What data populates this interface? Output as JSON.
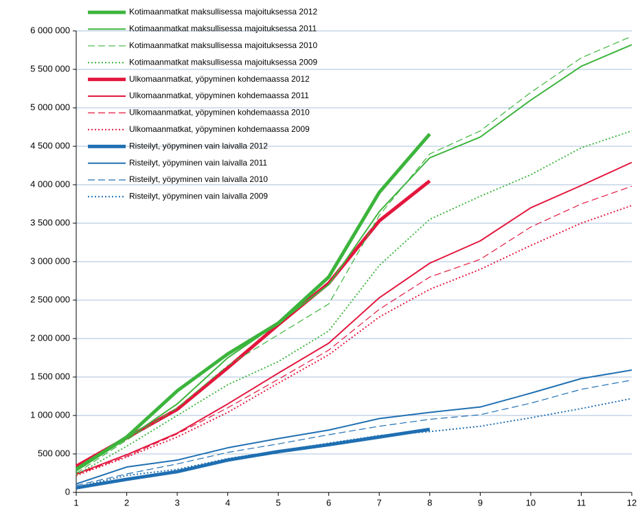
{
  "chart_data": {
    "type": "line",
    "x": [
      1,
      2,
      3,
      4,
      5,
      6,
      7,
      8,
      9,
      10,
      11,
      12
    ],
    "xlim": [
      1,
      12
    ],
    "xticks": [
      1,
      2,
      3,
      4,
      5,
      6,
      7,
      8,
      9,
      10,
      11,
      12
    ],
    "ylim": [
      0,
      6000000
    ],
    "yticks": [
      0,
      {
        "value": 500000,
        "label": "500 000"
      },
      {
        "value": 1000000,
        "label": "1 000 000"
      },
      {
        "value": 1500000,
        "label": "1 500 000"
      },
      {
        "value": 2000000,
        "label": "2 000 000"
      },
      {
        "value": 2500000,
        "label": "2 500 000"
      },
      {
        "value": 3000000,
        "label": "3 000 000"
      },
      {
        "value": 3500000,
        "label": "3 500 000"
      },
      {
        "value": 4000000,
        "label": "4 000 000"
      },
      {
        "value": 4500000,
        "label": "4 500 000"
      },
      {
        "value": 5000000,
        "label": "5 000 000"
      },
      {
        "value": 5500000,
        "label": "5 500 000"
      },
      {
        "value": 6000000,
        "label": "6 000 000"
      }
    ],
    "grid": true,
    "legend": "top-left",
    "series": [
      {
        "name": "Kotimaanmatkat maksullisessa majoituksessa 2012",
        "color": "#3cb43c",
        "style": "solid",
        "width": 5,
        "values": [
          300000,
          720000,
          1320000,
          1800000,
          2200000,
          2800000,
          3900000,
          4660000,
          null,
          null,
          null,
          null
        ]
      },
      {
        "name": "Kotimaanmatkat maksullisessa majoituksessa 2011",
        "color": "#3cb43c",
        "style": "solid",
        "width": 2,
        "values": [
          280000,
          700000,
          1150000,
          1750000,
          2200000,
          2700000,
          3650000,
          4350000,
          4620000,
          5100000,
          5540000,
          5820000
        ]
      },
      {
        "name": "Kotimaanmatkat maksullisessa majoituksessa 2010",
        "color": "#3cb43c",
        "style": "dashed",
        "width": 1.2,
        "values": [
          250000,
          680000,
          1100000,
          1650000,
          2050000,
          2450000,
          3600000,
          4400000,
          4700000,
          5200000,
          5650000,
          5930000
        ]
      },
      {
        "name": "Kotimaanmatkat maksullisessa majoituksessa 2009",
        "color": "#3cb43c",
        "style": "dotted",
        "width": 2,
        "values": [
          230000,
          600000,
          1000000,
          1400000,
          1700000,
          2100000,
          2950000,
          3550000,
          3850000,
          4130000,
          4480000,
          4700000
        ]
      },
      {
        "name": "Ulkomaanmatkat, yöpyminen kohdemaassa 2012",
        "color": "#e3173e",
        "style": "solid",
        "width": 5,
        "values": [
          340000,
          710000,
          1080000,
          1620000,
          2180000,
          2720000,
          3530000,
          4050000,
          null,
          null,
          null,
          null
        ]
      },
      {
        "name": "Ulkomaanmatkat, yöpyminen kohdemaassa 2011",
        "color": "#e3173e",
        "style": "solid",
        "width": 2,
        "values": [
          240000,
          490000,
          770000,
          1150000,
          1550000,
          1940000,
          2530000,
          2980000,
          3270000,
          3700000,
          3990000,
          4290000
        ]
      },
      {
        "name": "Ulkomaanmatkat, yöpyminen kohdemaassa 2010",
        "color": "#e3173e",
        "style": "dashed",
        "width": 1.2,
        "values": [
          230000,
          470000,
          760000,
          1100000,
          1470000,
          1850000,
          2380000,
          2800000,
          3030000,
          3450000,
          3750000,
          3980000
        ]
      },
      {
        "name": "Ulkomaanmatkat, yöpyminen kohdemaassa 2009",
        "color": "#e3173e",
        "style": "dotted",
        "width": 2,
        "values": [
          220000,
          460000,
          720000,
          1040000,
          1420000,
          1790000,
          2280000,
          2640000,
          2900000,
          3210000,
          3500000,
          3730000
        ]
      },
      {
        "name": "Risteilyt, yöpyminen vain laivalla 2012",
        "color": "#1f6fb2",
        "style": "solid",
        "width": 5,
        "values": [
          60000,
          170000,
          270000,
          420000,
          530000,
          620000,
          720000,
          820000,
          null,
          null,
          null,
          null
        ]
      },
      {
        "name": "Risteilyt, yöpyminen vain laivalla 2011",
        "color": "#1f6fb2",
        "style": "solid",
        "width": 2,
        "values": [
          110000,
          330000,
          420000,
          580000,
          700000,
          810000,
          960000,
          1040000,
          1110000,
          1290000,
          1480000,
          1590000
        ]
      },
      {
        "name": "Risteilyt, yöpyminen vain laivalla 2010",
        "color": "#1f6fb2",
        "style": "dashed",
        "width": 1.2,
        "values": [
          90000,
          240000,
          370000,
          520000,
          630000,
          750000,
          860000,
          950000,
          1010000,
          1160000,
          1340000,
          1460000
        ]
      },
      {
        "name": "Risteilyt, yöpyminen vain laivalla 2009",
        "color": "#1f6fb2",
        "style": "dotted",
        "width": 2,
        "values": [
          70000,
          220000,
          300000,
          440000,
          540000,
          640000,
          740000,
          790000,
          860000,
          970000,
          1090000,
          1220000
        ]
      }
    ]
  }
}
